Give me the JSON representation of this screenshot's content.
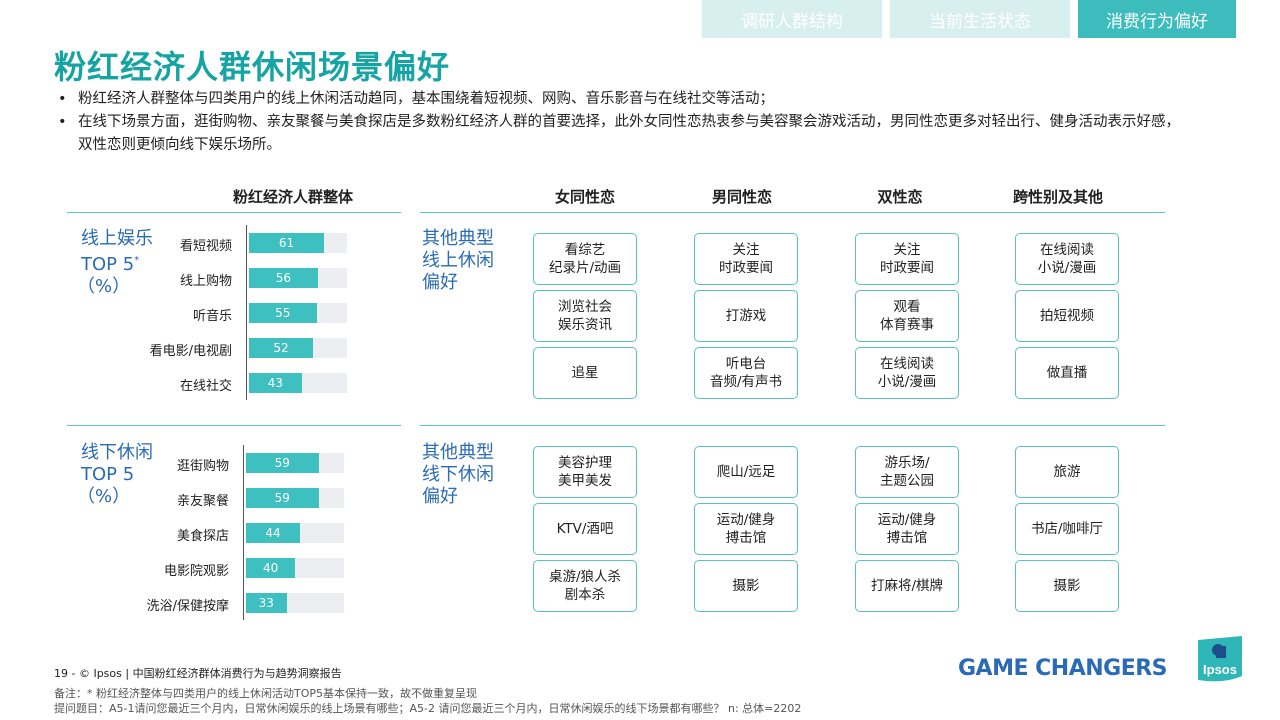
{
  "tabs": [
    {
      "label": "调研人群结构",
      "active": false
    },
    {
      "label": "当前生活状态",
      "active": false
    },
    {
      "label": "消费行为偏好",
      "active": true
    }
  ],
  "title": "粉红经济人群休闲场景偏好",
  "bullets": [
    "粉红经济人群整体与四类用户的线上休闲活动趋同，基本围绕着短视频、网购、音乐影音与在线社交等活动；",
    "在线下场景方面，逛街购物、亲友聚餐与美食探店是多数粉红经济人群的首要选择，此外女同性恋热衷参与美容聚会游戏活动，男同性恋更多对轻出行、健身活动表示好感，双性恋则更倾向线下娱乐场所。"
  ],
  "column_headers": {
    "overall": "粉红经济人群整体",
    "lesbian": "女同性恋",
    "gay": "男同性恋",
    "bisexual": "双性恋",
    "trans_other": "跨性别及其他"
  },
  "online": {
    "label_line1": "线上娱乐",
    "label_line2": "TOP 5",
    "label_sup": "*",
    "label_line3": "（%）",
    "other_label": "其他典型\n线上休闲\n偏好",
    "other_l1": "其他典型",
    "other_l2": "线上休闲",
    "other_l3": "偏好",
    "items": [
      {
        "label": "看短视频",
        "value": 61
      },
      {
        "label": "线上购物",
        "value": 56
      },
      {
        "label": "听音乐",
        "value": 55
      },
      {
        "label": "看电影/电视剧",
        "value": 52
      },
      {
        "label": "在线社交",
        "value": 43
      }
    ],
    "cards": {
      "lesbian": [
        "看综艺\n纪录片/动画",
        "浏览社会\n娱乐资讯",
        "追星"
      ],
      "gay": [
        "关注\n时政要闻",
        "打游戏",
        "听电台\n音频/有声书"
      ],
      "bisexual": [
        "关注\n时政要闻",
        "观看\n体育赛事",
        "在线阅读\n小说/漫画"
      ],
      "trans_other": [
        "在线阅读\n小说/漫画",
        "拍短视频",
        "做直播"
      ]
    }
  },
  "offline": {
    "label_line1": "线下休闲",
    "label_line2": "TOP 5",
    "label_line3": "（%）",
    "other_l1": "其他典型",
    "other_l2": "线下休闲",
    "other_l3": "偏好",
    "items": [
      {
        "label": "逛街购物",
        "value": 59
      },
      {
        "label": "亲友聚餐",
        "value": 59
      },
      {
        "label": "美食探店",
        "value": 44
      },
      {
        "label": "电影院观影",
        "value": 40
      },
      {
        "label": "洗浴/保健按摩",
        "value": 33
      }
    ],
    "cards": {
      "lesbian": [
        "美容护理\n美甲美发",
        "KTV/酒吧",
        "桌游/狼人杀\n剧本杀"
      ],
      "gay": [
        "爬山/远足",
        "运动/健身\n搏击馆",
        "摄影"
      ],
      "bisexual": [
        "游乐场/\n主题公园",
        "运动/健身\n搏击馆",
        "打麻将/棋牌"
      ],
      "trans_other": [
        "旅游",
        "书店/咖啡厅",
        "摄影"
      ]
    }
  },
  "footer": {
    "page_line": "19  -  © Ipsos  |  中国粉红经济群体消费行为与趋势洞察报告",
    "note1": "备注：* 粉红经济整体与四类用户的线上休闲活动TOP5基本保持一致，故不做重复呈现",
    "note2": "提问题目：A5-1请问您最近三个月内，日常休闲娱乐的线上场景有哪些；A5-2 请问您最近三个月内，日常休闲娱乐的线下场景都有哪些？ n: 总体=2202",
    "brand": "GAME CHANGERS",
    "logo_text": "Ipsos"
  },
  "colors": {
    "accent": "#16a3a3",
    "bar": "#3fc0c0",
    "label_blue": "#2a6bb5",
    "card_border": "#56c2c2"
  }
}
